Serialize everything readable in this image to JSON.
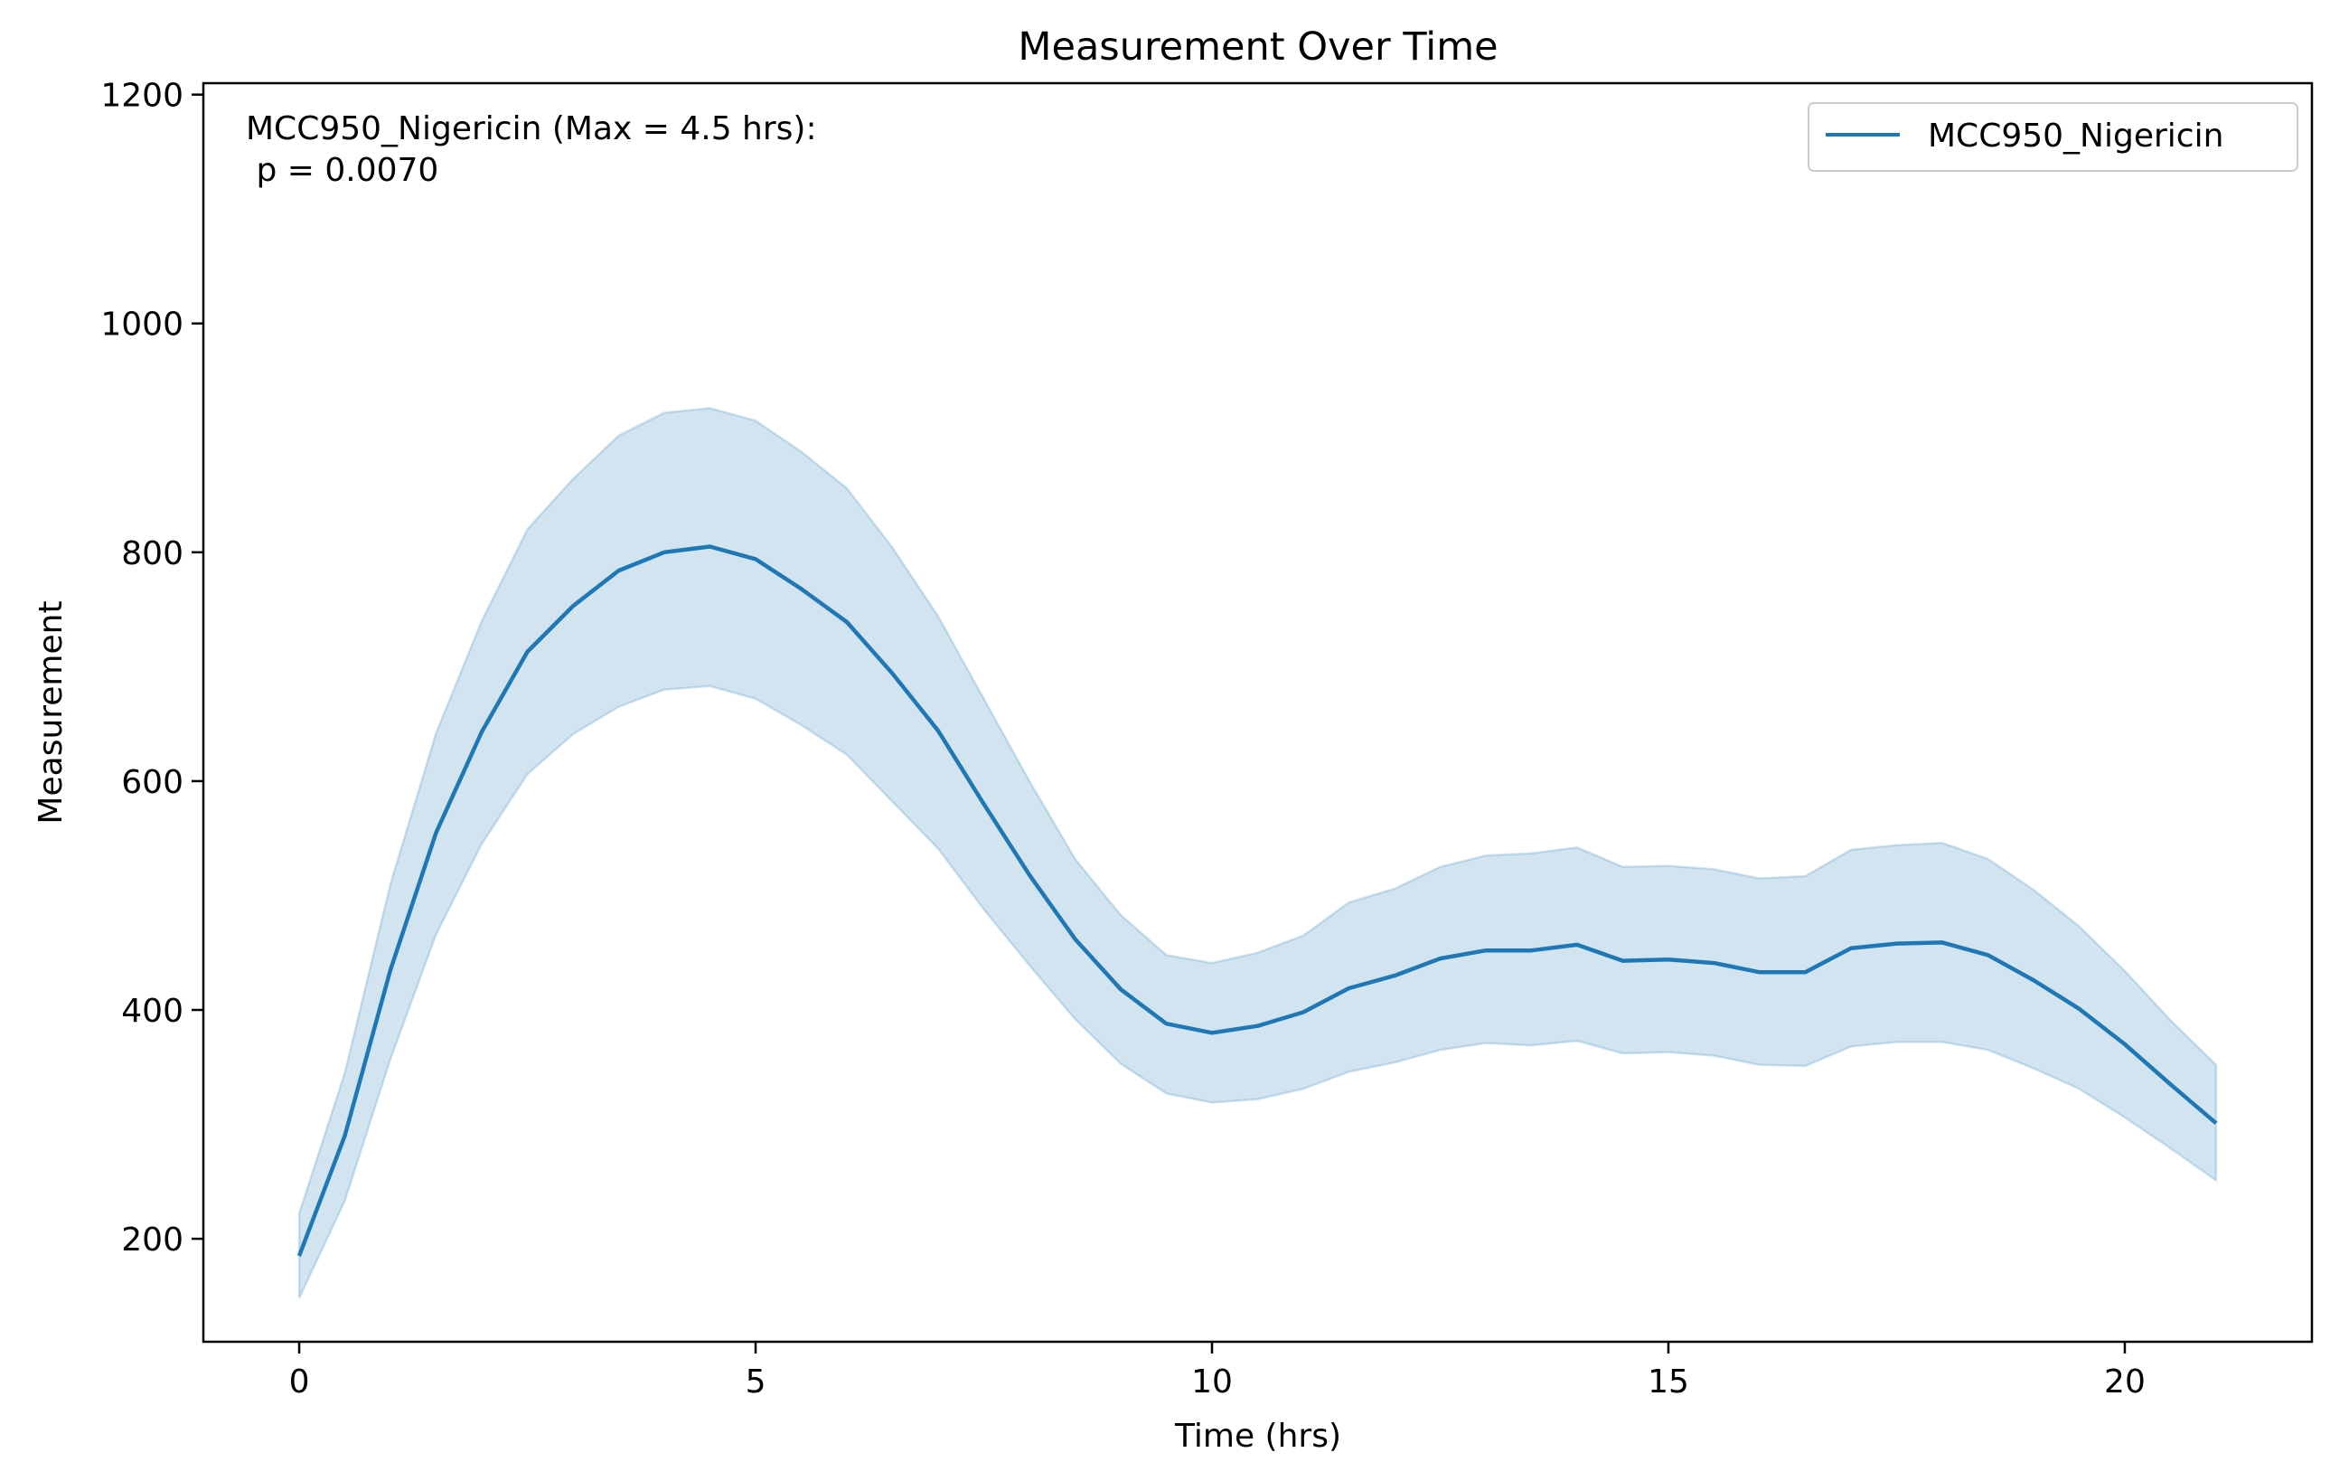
{
  "chart_data": {
    "type": "line",
    "title": "Measurement Over Time",
    "xlabel": "Time (hrs)",
    "ylabel": "Measurement",
    "xlim": [
      -1.05,
      22.05
    ],
    "ylim": [
      110,
      1210
    ],
    "xticks": [
      0,
      5,
      10,
      15,
      20
    ],
    "yticks": [
      200,
      400,
      600,
      800,
      1000,
      1200
    ],
    "grid": false,
    "legend_position": "top-right",
    "annotation": {
      "line1": "MCC950_Nigericin (Max = 4.5 hrs):",
      "line2": " p = 0.0070"
    },
    "series": [
      {
        "name": "MCC950_Nigericin",
        "color": "#1f77b4",
        "band_color": "#1f77b4",
        "x": [
          0,
          0.5,
          1,
          1.5,
          2,
          2.5,
          3,
          3.5,
          4,
          4.5,
          5,
          5.5,
          6,
          6.5,
          7,
          7.5,
          8,
          8.5,
          9,
          9.5,
          10,
          10.5,
          11,
          11.5,
          12,
          12.5,
          13,
          13.5,
          14,
          14.5,
          15,
          15.5,
          16,
          16.5,
          17,
          17.5,
          18,
          18.5,
          19,
          19.5,
          20,
          20.5,
          21
        ],
        "y": [
          185,
          290,
          435,
          555,
          643,
          713,
          753,
          784,
          800,
          805,
          794,
          768,
          739,
          694,
          644,
          580,
          518,
          462,
          418,
          388,
          380,
          386,
          398,
          419,
          430,
          445,
          452,
          452,
          457,
          443,
          444,
          441,
          433,
          433,
          454,
          458,
          459,
          448,
          426,
          401,
          370,
          335,
          301
        ],
        "lower": [
          148,
          233,
          357,
          466,
          545,
          606,
          641,
          665,
          680,
          683,
          672,
          649,
          623,
          582,
          541,
          488,
          439,
          392,
          353,
          327,
          319,
          322,
          331,
          346,
          354,
          365,
          371,
          369,
          373,
          362,
          363,
          360,
          352,
          351,
          368,
          372,
          372,
          365,
          349,
          331,
          306,
          279,
          251
        ],
        "upper": [
          222,
          345,
          510,
          642,
          740,
          820,
          864,
          902,
          922,
          926,
          915,
          888,
          856,
          804,
          744,
          672,
          600,
          532,
          483,
          448,
          441,
          450,
          465,
          494,
          506,
          525,
          535,
          537,
          542,
          525,
          526,
          523,
          515,
          517,
          540,
          544,
          546,
          532,
          505,
          473,
          434,
          391,
          352
        ]
      }
    ]
  }
}
